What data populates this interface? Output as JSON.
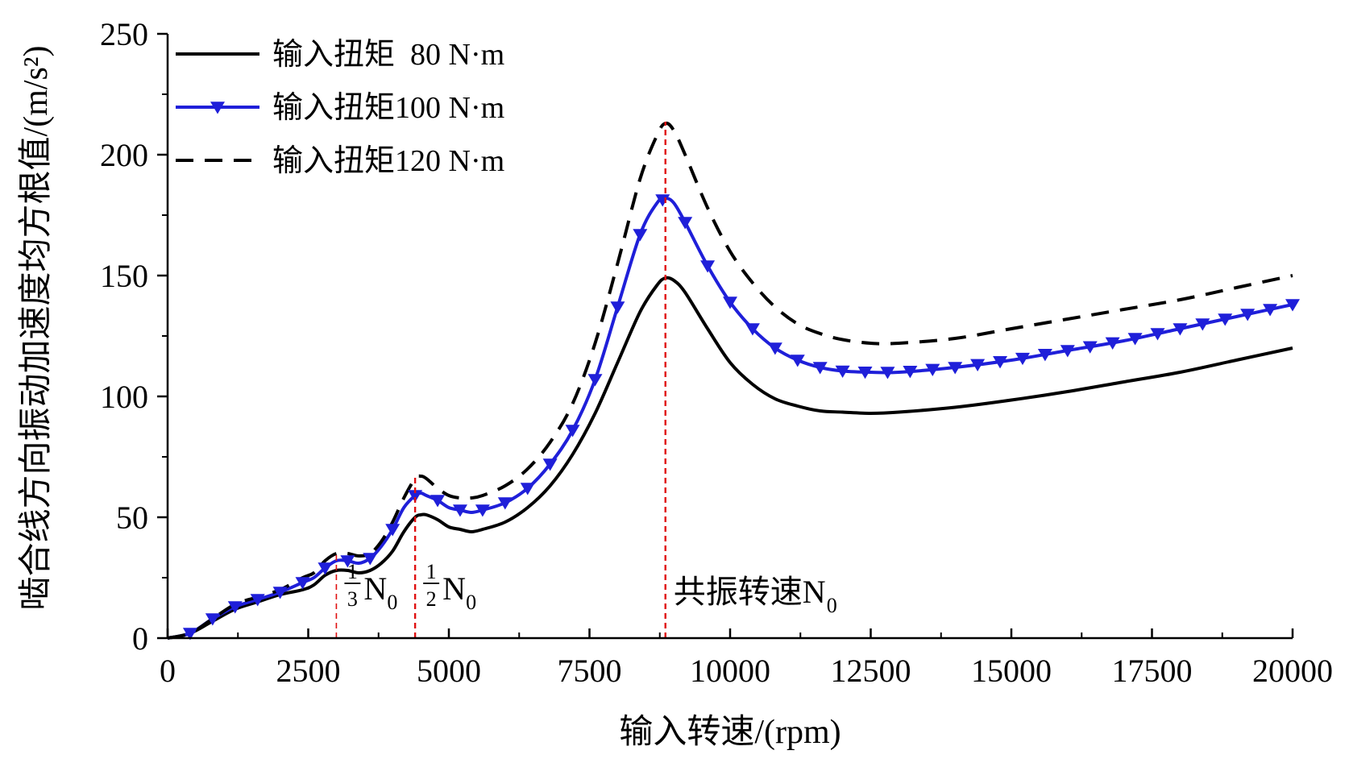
{
  "chart_data": {
    "type": "line",
    "xlabel": "输入转速/(rpm)",
    "ylabel": "啮合线方向振动加速度均方根值/(m/s²)",
    "xlim": [
      0,
      20000
    ],
    "ylim": [
      0,
      250
    ],
    "xticks": [
      0,
      2500,
      5000,
      7500,
      10000,
      12500,
      15000,
      17500,
      20000
    ],
    "yticks": [
      0,
      50,
      100,
      150,
      200,
      250
    ],
    "xtick_labels": [
      "0",
      "2500",
      "5000",
      "7500",
      "10000",
      "12500",
      "15000",
      "17500",
      "20000"
    ],
    "ytick_labels": [
      "0",
      "50",
      "100",
      "150",
      "200",
      "250"
    ],
    "grid": false,
    "legend_position": "top-left",
    "series": [
      {
        "name": "输入扭矩  80 N·m",
        "style": "solid",
        "color": "#000000",
        "x": [
          0,
          400,
          800,
          1200,
          1600,
          2000,
          2400,
          2600,
          2800,
          3000,
          3200,
          3400,
          3600,
          3800,
          4000,
          4200,
          4400,
          4500,
          4600,
          4800,
          5000,
          5200,
          5400,
          5600,
          6000,
          6400,
          6800,
          7200,
          7600,
          8000,
          8400,
          8700,
          8850,
          9000,
          9200,
          9600,
          10000,
          10400,
          10800,
          11200,
          11600,
          12000,
          12500,
          13000,
          14000,
          15000,
          16000,
          17000,
          18000,
          19000,
          20000
        ],
        "y": [
          0,
          2,
          7,
          12,
          15,
          18,
          20,
          22,
          26,
          28,
          28,
          27,
          28,
          31,
          36,
          44,
          50,
          51,
          51,
          49,
          46,
          45,
          44,
          45,
          48,
          54,
          63,
          76,
          93,
          114,
          135,
          146,
          149,
          148,
          143,
          128,
          114,
          105,
          99,
          96,
          94,
          93.5,
          93,
          93.5,
          95.5,
          98.5,
          102,
          106,
          110,
          115,
          120
        ]
      },
      {
        "name": "输入扭矩100 N·m",
        "style": "solid-marker",
        "marker": "triangle-down",
        "color": "#1f1fd9",
        "x": [
          0,
          400,
          800,
          1200,
          1600,
          2000,
          2400,
          2600,
          2800,
          3000,
          3200,
          3400,
          3600,
          3800,
          4000,
          4200,
          4400,
          4500,
          4600,
          4800,
          5000,
          5200,
          5400,
          5600,
          6000,
          6400,
          6800,
          7200,
          7600,
          8000,
          8400,
          8700,
          8850,
          9000,
          9200,
          9600,
          10000,
          10400,
          10800,
          11200,
          11600,
          12000,
          12500,
          13000,
          14000,
          15000,
          16000,
          17000,
          18000,
          19000,
          20000
        ],
        "y": [
          0,
          2,
          8,
          13,
          16,
          19,
          23,
          25,
          29,
          32,
          32,
          31,
          33,
          38,
          45,
          54,
          59,
          60,
          59,
          57,
          54,
          53,
          52,
          53,
          56,
          62,
          72,
          86,
          107,
          137,
          167,
          180,
          182,
          180,
          172,
          154,
          139,
          128,
          120,
          115,
          112,
          110.5,
          110,
          110,
          112,
          115,
          119,
          123,
          128,
          133,
          138
        ]
      },
      {
        "name": "输入扭矩120 N·m",
        "style": "dashed",
        "color": "#000000",
        "x": [
          0,
          400,
          800,
          1200,
          1600,
          2000,
          2400,
          2600,
          2800,
          3000,
          3200,
          3400,
          3600,
          3800,
          4000,
          4200,
          4400,
          4500,
          4600,
          4800,
          5000,
          5200,
          5400,
          5600,
          6000,
          6400,
          6800,
          7200,
          7600,
          8000,
          8400,
          8700,
          8850,
          9000,
          9200,
          9600,
          10000,
          10400,
          10800,
          11200,
          11600,
          12000,
          12500,
          13000,
          14000,
          15000,
          16000,
          17000,
          18000,
          19000,
          20000
        ],
        "y": [
          0,
          2,
          8,
          14,
          17,
          20,
          25,
          27,
          32,
          35,
          35,
          34,
          35,
          40,
          48,
          58,
          66,
          67,
          66,
          62,
          59,
          58,
          58,
          59,
          63,
          70,
          81,
          97,
          122,
          155,
          190,
          208,
          213,
          210,
          200,
          178,
          160,
          147,
          137,
          130,
          126,
          123.5,
          122,
          122,
          124,
          128,
          132,
          136,
          140,
          145,
          150
        ]
      }
    ],
    "annotations": [
      {
        "x": 3000,
        "label": "N",
        "sub": "0",
        "frac_num": "1",
        "frac_den": "3"
      },
      {
        "x": 4400,
        "label": "N",
        "sub": "0",
        "frac_num": "1",
        "frac_den": "2"
      },
      {
        "x": 8850,
        "label": "共振转速N",
        "sub": "0"
      }
    ]
  }
}
